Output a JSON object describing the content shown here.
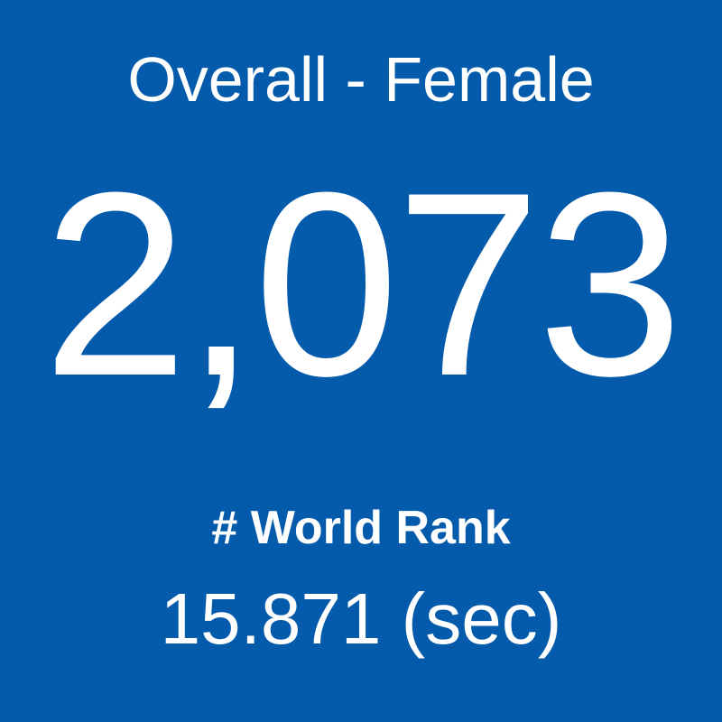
{
  "card": {
    "title": "Overall - Female",
    "rank": "2,073",
    "rank_label": "# World Rank",
    "time": "15.871 (sec)"
  }
}
